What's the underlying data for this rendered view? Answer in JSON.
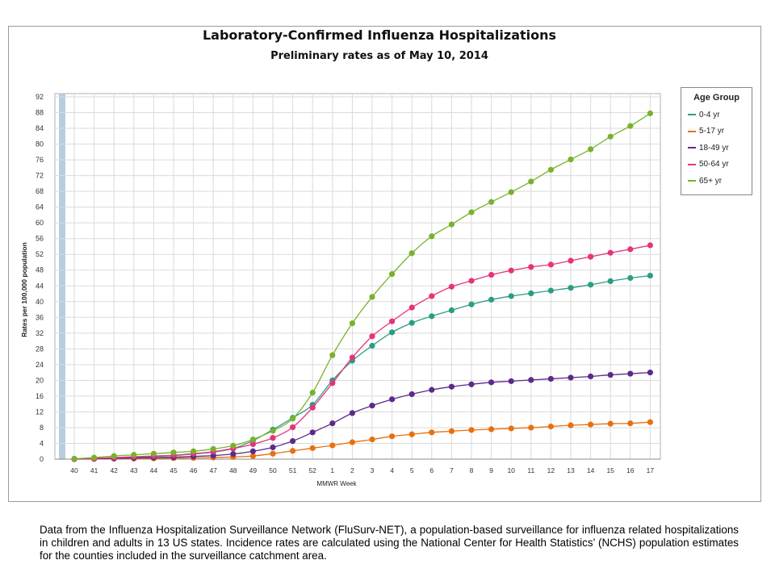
{
  "chart_data": {
    "type": "line",
    "title": "Laboratory-Confirmed Influenza Hospitalizations",
    "subtitle": "Preliminary rates as of May 10, 2014",
    "xlabel": "MMWR Week",
    "ylabel": "Rates per 100,000 population",
    "ylim": [
      0,
      92
    ],
    "yticks": [
      "0",
      "4",
      "8",
      "12",
      "16",
      "20",
      "24",
      "28",
      "32",
      "36",
      "40",
      "44",
      "48",
      "52",
      "56",
      "60",
      "64",
      "68",
      "72",
      "76",
      "80",
      "84",
      "88",
      "92"
    ],
    "categories": [
      "40",
      "41",
      "42",
      "43",
      "44",
      "45",
      "46",
      "47",
      "48",
      "49",
      "50",
      "51",
      "52",
      "1",
      "2",
      "3",
      "4",
      "5",
      "6",
      "7",
      "8",
      "9",
      "10",
      "11",
      "12",
      "13",
      "14",
      "15",
      "16",
      "17"
    ],
    "grid": true,
    "legend_title": "Age Group",
    "legend_position": "right",
    "series": [
      {
        "name": "0-4 yr",
        "color": "#2a9d85",
        "values": [
          0.1,
          0.2,
          0.35,
          0.5,
          0.7,
          0.9,
          1.3,
          1.8,
          2.7,
          4.7,
          7.5,
          10.5,
          13.8,
          20.0,
          25.0,
          28.8,
          32.2,
          34.6,
          36.3,
          37.8,
          39.3,
          40.5,
          41.4,
          42.1,
          42.8,
          43.5,
          44.3,
          45.2,
          46.0,
          46.6
        ]
      },
      {
        "name": "5-17 yr",
        "color": "#e8700e",
        "values": [
          0.0,
          0.05,
          0.1,
          0.15,
          0.2,
          0.25,
          0.3,
          0.4,
          0.55,
          0.8,
          1.4,
          2.1,
          2.8,
          3.5,
          4.3,
          5.0,
          5.8,
          6.3,
          6.8,
          7.1,
          7.4,
          7.6,
          7.8,
          8.0,
          8.3,
          8.6,
          8.8,
          9.0,
          9.1,
          9.4
        ]
      },
      {
        "name": "18-49 yr",
        "color": "#5b2a8c",
        "values": [
          0.0,
          0.1,
          0.2,
          0.3,
          0.4,
          0.5,
          0.7,
          0.9,
          1.3,
          2.0,
          3.0,
          4.6,
          6.8,
          9.1,
          11.7,
          13.6,
          15.2,
          16.5,
          17.6,
          18.4,
          19.0,
          19.5,
          19.8,
          20.1,
          20.4,
          20.7,
          21.0,
          21.4,
          21.7,
          22.0
        ]
      },
      {
        "name": "50-64 yr",
        "color": "#e6337a",
        "values": [
          0.05,
          0.2,
          0.4,
          0.6,
          0.8,
          1.0,
          1.4,
          1.9,
          2.7,
          3.8,
          5.4,
          8.1,
          13.1,
          19.3,
          25.8,
          31.2,
          35.0,
          38.5,
          41.4,
          43.8,
          45.3,
          46.8,
          47.9,
          48.8,
          49.4,
          50.4,
          51.4,
          52.4,
          53.3,
          54.3
        ]
      },
      {
        "name": "65+ yr",
        "color": "#78b22c",
        "values": [
          0.1,
          0.4,
          0.8,
          1.1,
          1.4,
          1.7,
          2.0,
          2.6,
          3.4,
          5.0,
          7.2,
          10.3,
          16.9,
          26.4,
          34.5,
          41.2,
          47.0,
          52.3,
          56.6,
          59.6,
          62.7,
          65.3,
          67.8,
          70.5,
          73.5,
          76.1,
          78.7,
          81.9,
          84.6,
          87.8
        ]
      }
    ]
  },
  "caption": "Data from the Influenza  Hospitalization Surveillance  Network (FluSurv-NET),  a population-based surveillance  for influenza related hospitalizations in children and adults in 13 US states. Incidence rates are calculated using the National Center for Health Statistics’ (NCHS) population estimates for the counties included in the surveillance catchment area."
}
